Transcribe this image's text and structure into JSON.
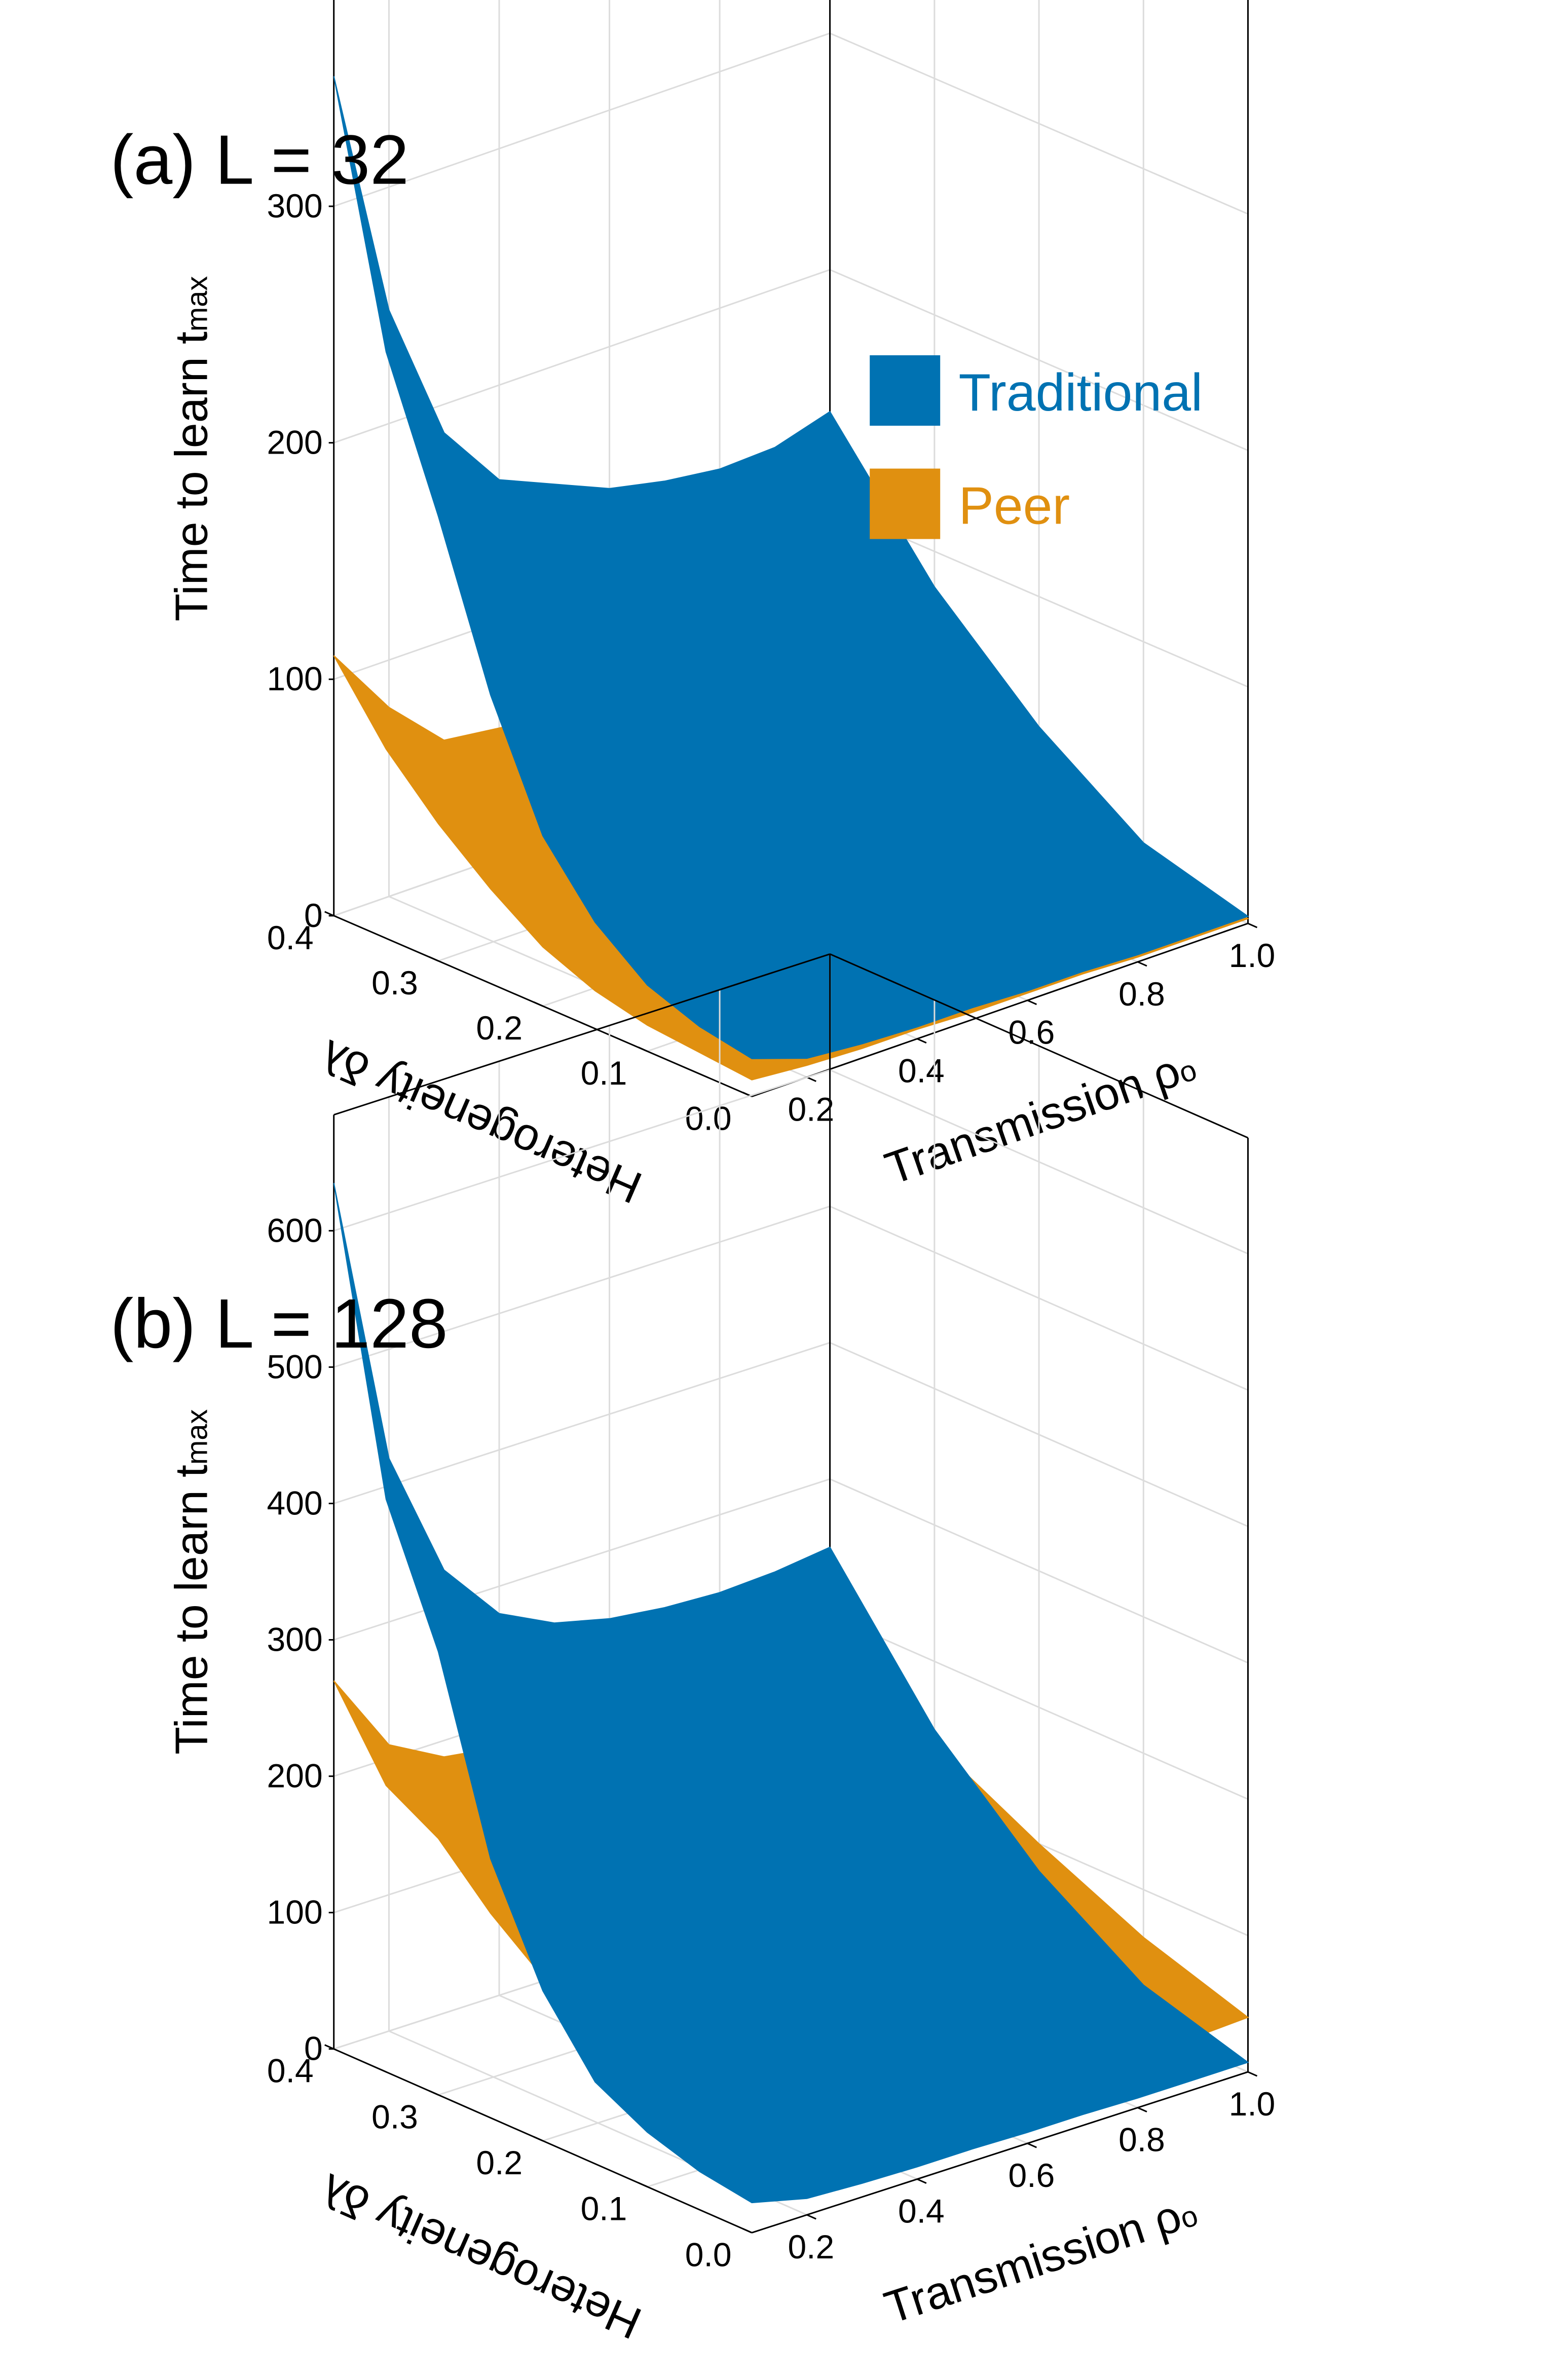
{
  "figure": {
    "background": "#ffffff"
  },
  "legend": {
    "entries": [
      {
        "label": "Traditional",
        "color": "#0072B2"
      },
      {
        "label": "Peer",
        "color": "#E09010"
      }
    ]
  },
  "axes": {
    "z_label": "Time to learn t",
    "z_label_sub": "max",
    "delta_label": "Heterogeneity δλ",
    "rho_label": "Transmission ρ",
    "rho_label_sub": "o"
  },
  "chart_data": [
    {
      "type": "surface",
      "title": "(a) L = 32",
      "x_name": "Heterogeneity δλ",
      "y_name": "Transmission ρo",
      "z_name": "Time to learn tmax",
      "x_ticks": [
        "0.0",
        "0.1",
        "0.2",
        "0.3",
        "0.4"
      ],
      "y_ticks": [
        "0.2",
        "0.4",
        "0.6",
        "0.8",
        "1.0"
      ],
      "z_ticks": [
        "0",
        "100",
        "200",
        "300"
      ],
      "xlim": [
        0.0,
        0.4
      ],
      "ylim": [
        0.1,
        1.0
      ],
      "zlim": [
        0,
        395
      ],
      "series": [
        {
          "name": "Traditional",
          "color": "#0072B2",
          "rear_edge": {
            "x": 0.4,
            "y": [
              0.1,
              0.2,
              0.3,
              0.4,
              0.5,
              0.6,
              0.7,
              0.8,
              0.9,
              1.0
            ],
            "z": [
              355,
              248,
              188,
              160,
              150,
              140,
              135,
              132,
              133,
              140
            ]
          },
          "front_edge": {
            "x": 0.0,
            "y": [
              0.1,
              0.2,
              0.3,
              0.4,
              0.5,
              0.6,
              0.7,
              0.8,
              0.9,
              1.0
            ],
            "z": [
              16,
              8,
              6,
              5,
              5,
              4,
              4,
              3,
              3,
              3
            ]
          },
          "left_edge": {
            "y": 0.1,
            "x": [
              0.4,
              0.35,
              0.3,
              0.25,
              0.2,
              0.15,
              0.1,
              0.05,
              0.0
            ],
            "z": [
              355,
              248,
              188,
              122,
              72,
              45,
              28,
              20,
              16
            ]
          },
          "right_edge": {
            "y": 1.0,
            "x": [
              0.4,
              0.3,
              0.2,
              0.1,
              0.0
            ],
            "z": [
              140,
              85,
              45,
              15,
              3
            ]
          }
        },
        {
          "name": "Peer",
          "color": "#E09010",
          "rear_edge": {
            "x": 0.4,
            "y": [
              0.1,
              0.2,
              0.3,
              0.4,
              0.5,
              0.6,
              0.7,
              0.8,
              0.9,
              1.0
            ],
            "z": [
              110,
              80,
              58,
              55,
              52,
              50,
              48,
              47,
              46,
              45
            ]
          },
          "front_edge": {
            "x": 0.0,
            "y": [
              0.1,
              0.2,
              0.3,
              0.4,
              0.5,
              0.6,
              0.7,
              0.8,
              0.9,
              1.0
            ],
            "z": [
              7,
              5,
              4,
              4,
              3,
              3,
              3,
              2,
              2,
              2
            ]
          },
          "left_edge": {
            "y": 0.1,
            "x": [
              0.4,
              0.35,
              0.3,
              0.25,
              0.2,
              0.15,
              0.1,
              0.05,
              0.0
            ],
            "z": [
              110,
              80,
              58,
              40,
              25,
              16,
              11,
              9,
              7
            ]
          },
          "right_edge": {
            "y": 1.0,
            "x": [
              0.4,
              0.3,
              0.2,
              0.1,
              0.0
            ],
            "z": [
              45,
              30,
              18,
              8,
              2
            ]
          }
        }
      ]
    },
    {
      "type": "surface",
      "title": "(b) L = 128",
      "x_name": "Heterogeneity δλ",
      "y_name": "Transmission ρo",
      "z_name": "Time to learn tmax",
      "x_ticks": [
        "0.0",
        "0.1",
        "0.2",
        "0.3",
        "0.4"
      ],
      "y_ticks": [
        "0.2",
        "0.4",
        "0.6",
        "0.8",
        "1.0"
      ],
      "z_ticks": [
        "0",
        "100",
        "200",
        "300",
        "400",
        "500",
        "600"
      ],
      "xlim": [
        0.0,
        0.4
      ],
      "ylim": [
        0.1,
        1.0
      ],
      "zlim": [
        0,
        685
      ],
      "series": [
        {
          "name": "Traditional",
          "color": "#0072B2",
          "rear_edge": {
            "x": 0.4,
            "y": [
              0.1,
              0.2,
              0.3,
              0.4,
              0.5,
              0.6,
              0.7,
              0.8,
              0.9,
              1.0
            ],
            "z": [
              635,
              420,
              325,
              280,
              260,
              250,
              245,
              243,
              245,
              250
            ]
          },
          "front_edge": {
            "x": 0.0,
            "y": [
              0.1,
              0.2,
              0.3,
              0.4,
              0.5,
              0.6,
              0.7,
              0.8,
              0.9,
              1.0
            ],
            "z": [
              22,
              12,
              10,
              9,
              9,
              8,
              8,
              7,
              7,
              7
            ]
          },
          "left_edge": {
            "y": 0.1,
            "x": [
              0.4,
              0.35,
              0.3,
              0.25,
              0.2,
              0.15,
              0.1,
              0.05,
              0.0
            ],
            "z": [
              635,
              420,
              325,
              190,
              110,
              60,
              40,
              28,
              22
            ]
          },
          "right_edge": {
            "y": 1.0,
            "x": [
              0.4,
              0.3,
              0.2,
              0.1,
              0.0
            ],
            "z": [
              250,
              150,
              80,
              30,
              7
            ]
          }
        },
        {
          "name": "Peer",
          "color": "#E09010",
          "rear_edge": {
            "x": 0.4,
            "y": [
              0.1,
              0.2,
              0.3,
              0.4,
              0.5,
              0.6,
              0.7,
              0.8,
              0.9,
              1.0
            ],
            "z": [
              270,
              210,
              188,
              182,
              180,
              180,
              182,
              185,
              188,
              190
            ]
          },
          "front_edge": {
            "x": 0.0,
            "y": [
              0.1,
              0.2,
              0.3,
              0.4,
              0.5,
              0.6,
              0.7,
              0.8,
              0.9,
              1.0
            ],
            "z": [
              60,
              45,
              40,
              38,
              36,
              35,
              35,
              36,
              38,
              40
            ]
          },
          "left_edge": {
            "y": 0.1,
            "x": [
              0.4,
              0.35,
              0.3,
              0.25,
              0.2,
              0.15,
              0.1,
              0.05,
              0.0
            ],
            "z": [
              270,
              210,
              188,
              150,
              120,
              95,
              80,
              68,
              60
            ]
          },
          "right_edge": {
            "y": 1.0,
            "x": [
              0.4,
              0.3,
              0.2,
              0.1,
              0.0
            ],
            "z": [
              190,
              140,
              100,
              65,
              40
            ]
          }
        }
      ]
    }
  ]
}
